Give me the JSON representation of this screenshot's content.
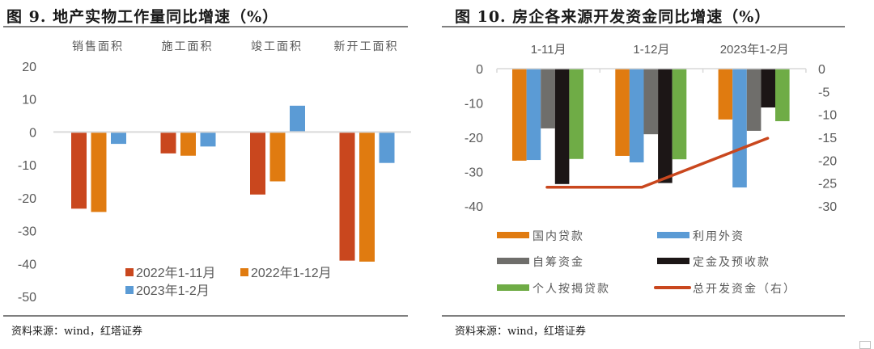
{
  "charts": {
    "left": {
      "title": "图 9. 地产实物工作量同比增速（%）",
      "source": "资料来源：wind，红塔证券"
    },
    "right": {
      "title": "图 10. 房企各来源开发资金同比增速（%）",
      "source": "资料来源：wind，红塔证券"
    }
  },
  "chart_data": [
    {
      "type": "bar",
      "title": "图 9. 地产实物工作量同比增速（%）",
      "xlabel": "",
      "ylabel": "",
      "categories": [
        "销售面积",
        "施工面积",
        "竣工面积",
        "新开工面积"
      ],
      "category_axis_position": "top",
      "series": [
        {
          "name": "2022年1-11月",
          "color": "#C9471E",
          "values": [
            -23.3,
            -6.5,
            -19.0,
            -39.1
          ]
        },
        {
          "name": "2022年1-12月",
          "color": "#E07B10",
          "values": [
            -24.3,
            -7.2,
            -15.0,
            -39.4
          ]
        },
        {
          "name": "2023年1-2月",
          "color": "#5B9BD5",
          "values": [
            -3.6,
            -4.4,
            8.0,
            -9.4
          ]
        }
      ],
      "ylim": [
        -50,
        20
      ],
      "yticks": [
        20,
        10,
        0,
        -10,
        -20,
        -30,
        -40,
        -50
      ],
      "grid": false,
      "legend": "bottom-center",
      "source": "资料来源：wind，红塔证券"
    },
    {
      "type": "bar",
      "title": "图 10. 房企各来源开发资金同比增速（%）",
      "xlabel": "",
      "ylabel": "",
      "categories": [
        "1-11月",
        "1-12月",
        "2023年1-2月"
      ],
      "category_axis_position": "top",
      "series": [
        {
          "name": "国内贷款",
          "color": "#E07B10",
          "axis": "left",
          "values": [
            -26.8,
            -25.4,
            -14.8
          ]
        },
        {
          "name": "利用外资",
          "color": "#5B9BD5",
          "axis": "left",
          "values": [
            -26.6,
            -27.3,
            -34.6
          ]
        },
        {
          "name": "自筹资金",
          "color": "#6F6E6B",
          "axis": "left",
          "values": [
            -17.4,
            -19.1,
            -18.1
          ]
        },
        {
          "name": "定金及预收款",
          "color": "#1C1616",
          "axis": "left",
          "values": [
            -33.6,
            -33.3,
            -11.3
          ]
        },
        {
          "name": "个人按揭贷款",
          "color": "#6FAC46",
          "axis": "left",
          "values": [
            -26.3,
            -26.4,
            -15.3
          ]
        },
        {
          "name": "总开发资金（右）",
          "color": "#C9471E",
          "axis": "right",
          "type": "line",
          "values": [
            -25.9,
            -25.9,
            -15.2
          ]
        }
      ],
      "ylim": [
        -40,
        0
      ],
      "yticks": [
        0,
        -10,
        -20,
        -30,
        -40
      ],
      "y2lim": [
        -30,
        0
      ],
      "y2ticks": [
        0,
        -5,
        -10,
        -15,
        -20,
        -25,
        -30
      ],
      "grid": false,
      "legend": "bottom",
      "source": "资料来源：wind，红塔证券"
    }
  ]
}
